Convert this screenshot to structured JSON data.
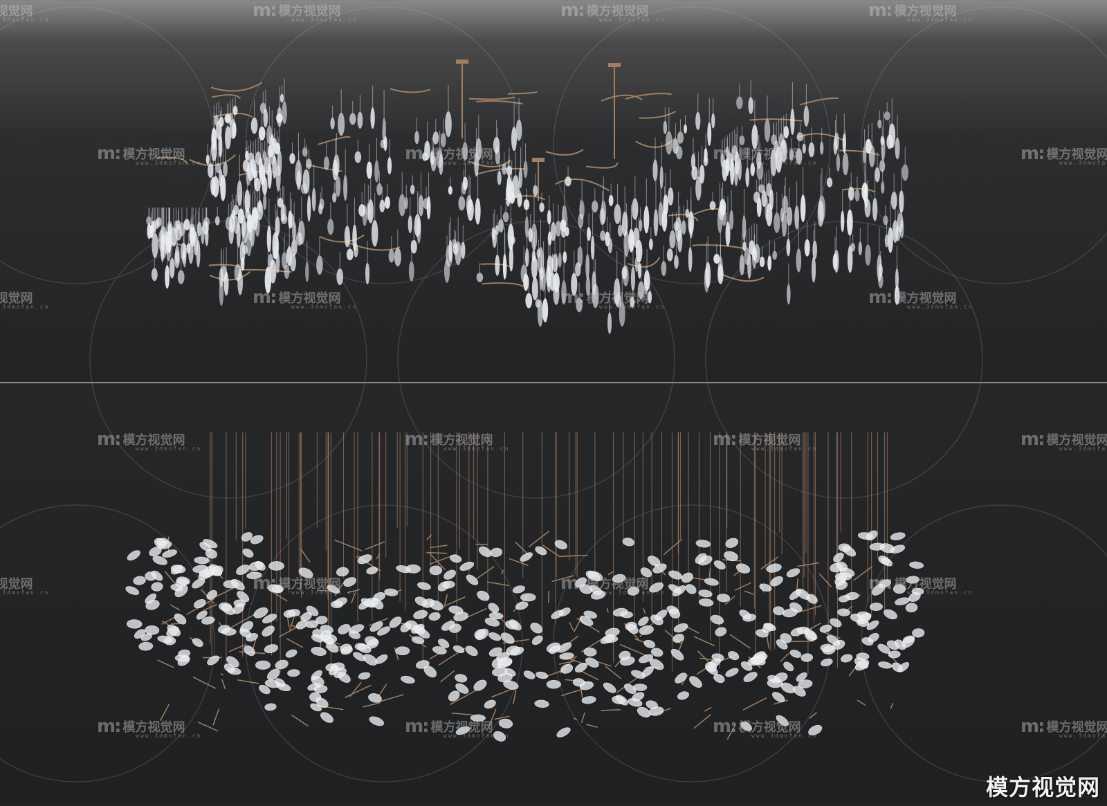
{
  "watermark": {
    "logo": "m:",
    "name": "模方视觉网",
    "url": "www.3dmofan.cn"
  },
  "corner_watermark": "模方视觉网",
  "colors": {
    "background": "#222325",
    "brass": "#a08060",
    "glass": "#e8ecef",
    "divider": "#8c8c8c"
  }
}
